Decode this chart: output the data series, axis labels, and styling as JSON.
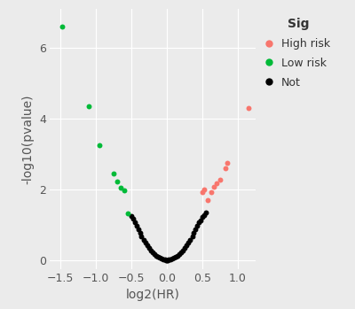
{
  "xlabel": "log2(HR)",
  "ylabel": "-log10(pvalue)",
  "xlim": [
    -1.65,
    1.25
  ],
  "ylim": [
    -0.25,
    7.1
  ],
  "xticks": [
    -1.5,
    -1.0,
    -0.5,
    0.0,
    0.5,
    1.0
  ],
  "yticks": [
    0,
    2,
    4,
    6
  ],
  "background_color": "#EBEBEB",
  "grid_color": "#FFFFFF",
  "high_risk_color": "#F8766D",
  "low_risk_color": "#00BA38",
  "not_color": "#000000",
  "point_size": 18,
  "high_risk_points": [
    [
      1.15,
      4.3
    ],
    [
      0.85,
      2.75
    ],
    [
      0.82,
      2.6
    ],
    [
      0.75,
      2.28
    ],
    [
      0.7,
      2.18
    ],
    [
      0.66,
      2.08
    ],
    [
      0.62,
      1.92
    ],
    [
      0.58,
      1.7
    ],
    [
      0.53,
      2.0
    ],
    [
      0.5,
      1.92
    ]
  ],
  "low_risk_points": [
    [
      -1.48,
      6.6
    ],
    [
      -1.1,
      4.35
    ],
    [
      -0.95,
      3.25
    ],
    [
      -0.75,
      2.45
    ],
    [
      -0.7,
      2.22
    ],
    [
      -0.65,
      2.05
    ],
    [
      -0.6,
      1.98
    ],
    [
      -0.55,
      1.32
    ]
  ],
  "not_points": [
    [
      -0.5,
      1.25
    ],
    [
      -0.48,
      1.16
    ],
    [
      -0.45,
      1.07
    ],
    [
      -0.43,
      0.97
    ],
    [
      -0.4,
      0.87
    ],
    [
      -0.38,
      0.77
    ],
    [
      -0.36,
      0.68
    ],
    [
      -0.33,
      0.58
    ],
    [
      -0.3,
      0.49
    ],
    [
      -0.28,
      0.41
    ],
    [
      -0.25,
      0.34
    ],
    [
      -0.23,
      0.27
    ],
    [
      -0.2,
      0.21
    ],
    [
      -0.18,
      0.16
    ],
    [
      -0.15,
      0.12
    ],
    [
      -0.13,
      0.085
    ],
    [
      -0.1,
      0.057
    ],
    [
      -0.08,
      0.033
    ],
    [
      -0.05,
      0.016
    ],
    [
      -0.03,
      0.006
    ],
    [
      -0.01,
      0.001
    ],
    [
      0.0,
      0.0
    ],
    [
      0.01,
      0.001
    ],
    [
      0.03,
      0.006
    ],
    [
      0.05,
      0.016
    ],
    [
      0.08,
      0.033
    ],
    [
      0.1,
      0.057
    ],
    [
      0.13,
      0.085
    ],
    [
      0.15,
      0.12
    ],
    [
      0.18,
      0.16
    ],
    [
      0.2,
      0.21
    ],
    [
      0.23,
      0.27
    ],
    [
      0.25,
      0.34
    ],
    [
      0.28,
      0.41
    ],
    [
      0.3,
      0.49
    ],
    [
      0.33,
      0.58
    ],
    [
      0.36,
      0.68
    ],
    [
      0.38,
      0.76
    ],
    [
      0.4,
      0.87
    ],
    [
      0.43,
      0.97
    ],
    [
      0.45,
      1.07
    ],
    [
      0.47,
      1.13
    ],
    [
      0.5,
      1.22
    ],
    [
      0.52,
      1.28
    ],
    [
      0.55,
      1.35
    ]
  ],
  "legend_title": "Sig",
  "legend_title_fontsize": 10,
  "legend_fontsize": 9,
  "axis_label_fontsize": 10,
  "tick_fontsize": 9
}
